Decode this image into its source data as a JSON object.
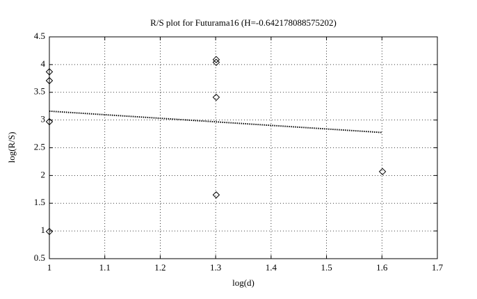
{
  "chart_data": {
    "type": "scatter",
    "title": "R/S plot for Futurama16 (H=-0.642178088575202)",
    "x_label": "log(d)",
    "y_label": "log(R/S)",
    "xlim": [
      1,
      1.7
    ],
    "xticks": [
      1,
      1.1,
      1.2,
      1.3,
      1.4,
      1.5,
      1.6,
      1.7
    ],
    "ylim": [
      0.5,
      4.5
    ],
    "yticks": [
      0.5,
      1,
      1.5,
      2,
      2.5,
      3,
      3.5,
      4,
      4.5
    ],
    "grid": true,
    "series": [
      {
        "color": "#000000",
        "marker": "diamond",
        "x": [
          1,
          1,
          1,
          1,
          1.301,
          1.301,
          1.301,
          1.301,
          1.601
        ],
        "values": [
          3.87,
          3.71,
          2.97,
          0.99,
          4.09,
          4.04,
          3.41,
          1.65,
          2.07
        ]
      },
      {
        "color": "#000000",
        "line": "dotted",
        "x": [
          1,
          1.6
        ],
        "values": [
          3.16,
          2.775
        ]
      }
    ]
  }
}
